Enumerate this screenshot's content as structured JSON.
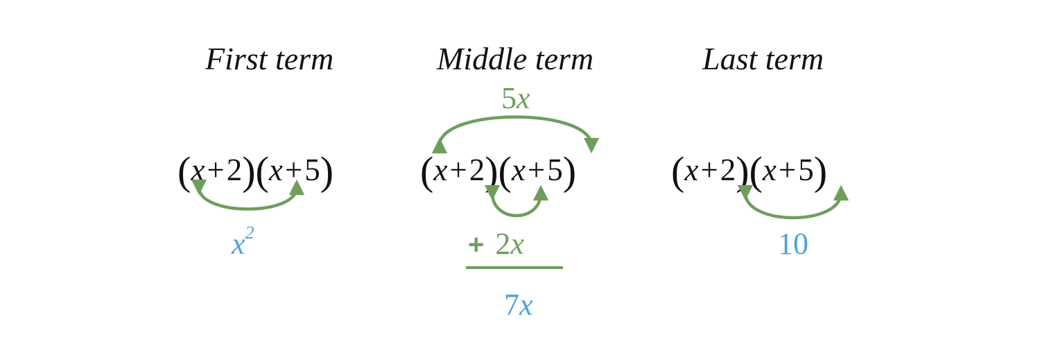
{
  "headings": {
    "first": "First term",
    "middle": "Middle term",
    "last": "Last term"
  },
  "expression": {
    "open": "(",
    "close": ")",
    "var": "x",
    "plus": "+",
    "a": "2",
    "b": "5"
  },
  "first_result": {
    "base": "x",
    "exponent": "2"
  },
  "middle": {
    "outer_coef": "5",
    "outer_var": "x",
    "inner_plus": "+",
    "inner_coef": "2",
    "inner_var": "x",
    "sum_coef": "7",
    "sum_var": "x"
  },
  "last_result": "10",
  "colors": {
    "arrow": "#6f9e5c",
    "result": "#4da3d9",
    "text": "#111111"
  }
}
